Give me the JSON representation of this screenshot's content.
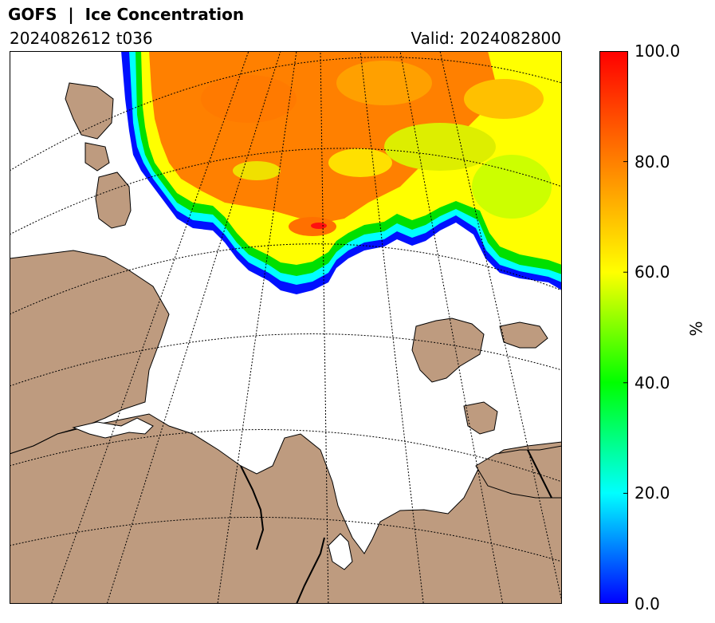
{
  "header": {
    "title": "GOFS  |  Ice Concentration",
    "run": "2024082612 t036",
    "valid": "Valid: 2024082800"
  },
  "colorbar": {
    "unit": "%",
    "min": 0,
    "max": 100,
    "ticks": [
      "0.0",
      "20.0",
      "40.0",
      "60.0",
      "80.0",
      "100.0"
    ],
    "tick_values": [
      0,
      20,
      40,
      60,
      80,
      100
    ],
    "colors": [
      "#0000ff",
      "#00ffff",
      "#00ff00",
      "#ffff00",
      "#ff8000",
      "#ff0000"
    ]
  },
  "map_colors": {
    "land": "#be9b7f",
    "ocean": "#ffffff",
    "coast": "#000000",
    "grid": "#000000"
  }
}
